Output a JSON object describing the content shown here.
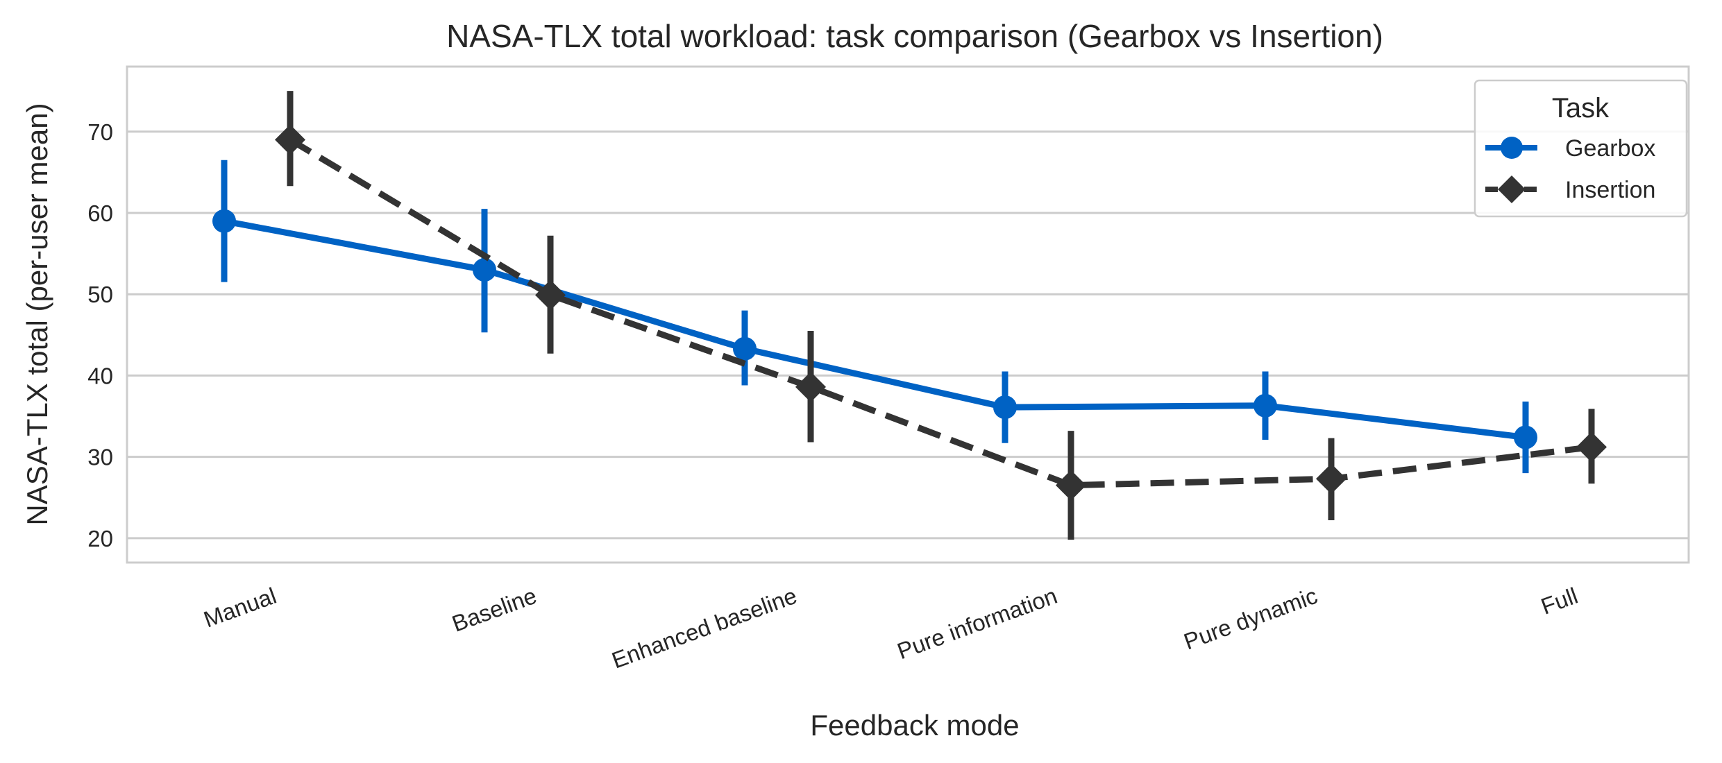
{
  "chart_data": {
    "type": "line",
    "title": "NASA-TLX total workload: task comparison (Gearbox vs Insertion)",
    "xlabel": "Feedback mode",
    "ylabel": "NASA-TLX total (per-user mean)",
    "categories": [
      "Manual",
      "Baseline",
      "Enhanced baseline",
      "Pure information",
      "Pure dynamic",
      "Full"
    ],
    "ylim": [
      17,
      78
    ],
    "yticks": [
      20,
      30,
      40,
      50,
      60,
      70
    ],
    "grid": "horizontal",
    "legend": {
      "title": "Task",
      "position": "top-right"
    },
    "series": [
      {
        "name": "Gearbox",
        "color": "#0062c4",
        "marker": "circle",
        "linestyle": "solid",
        "values": [
          59.0,
          53.0,
          43.3,
          36.1,
          36.3,
          32.4
        ],
        "err_low": [
          51.5,
          45.3,
          38.8,
          31.7,
          32.1,
          28.0
        ],
        "err_high": [
          66.5,
          60.5,
          48.0,
          40.5,
          40.5,
          36.8
        ]
      },
      {
        "name": "Insertion",
        "color": "#333333",
        "marker": "diamond",
        "linestyle": "dashed",
        "values": [
          69.0,
          49.9,
          38.6,
          26.5,
          27.3,
          31.2
        ],
        "err_low": [
          63.3,
          42.7,
          31.8,
          19.8,
          22.2,
          26.7
        ],
        "err_high": [
          75.0,
          57.2,
          45.5,
          33.2,
          32.3,
          35.9
        ]
      }
    ]
  }
}
